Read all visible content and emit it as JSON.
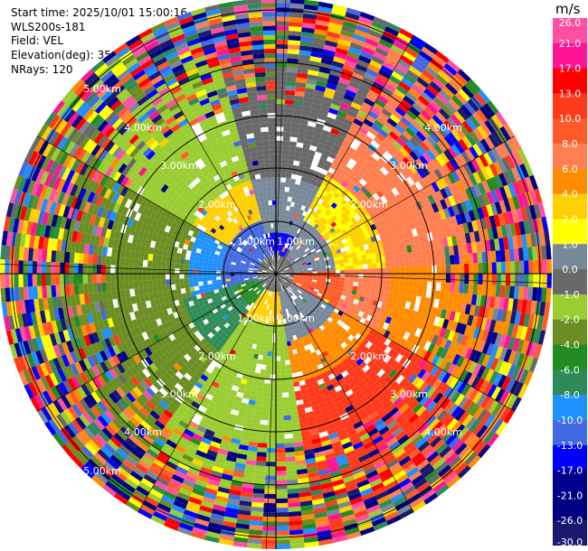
{
  "header": {
    "start_time": "Start time: 2025/10/01 15:00:16",
    "instrument": "WLS200s-181",
    "field": "Field: VEL",
    "elevation": "Elevation(deg): 35.00",
    "nrays": "NRays: 120"
  },
  "chart_data": {
    "type": "ppi",
    "field": "VEL",
    "units": "m/s",
    "nrays": 120,
    "range_rings_km": [
      1,
      2,
      3,
      4,
      5
    ],
    "ring_labels": [
      "1.00km",
      "2.00km",
      "3.00km",
      "4.00km",
      "5.00km"
    ],
    "colorbar": {
      "ticks": [
        "26.0",
        "21.0",
        "17.0",
        "13.0",
        "10.0",
        "8.0",
        "6.0",
        "4.0",
        "2.0",
        "1.0",
        "0.0",
        "-1.0",
        "-2.0",
        "-4.0",
        "-6.0",
        "-8.0",
        "-10.0",
        "-13.0",
        "-17.0",
        "-21.0",
        "-26.0",
        "-30.0"
      ],
      "bins": [
        {
          "color": "#ff4fa3"
        },
        {
          "color": "#ff1493"
        },
        {
          "color": "#ff0000"
        },
        {
          "color": "#ff3a1a"
        },
        {
          "color": "#ff5a28"
        },
        {
          "color": "#ff7f50"
        },
        {
          "color": "#ff8c00"
        },
        {
          "color": "#ffd000"
        },
        {
          "color": "#ffff00"
        },
        {
          "color": "#778899"
        },
        {
          "color": "#696969"
        },
        {
          "color": "#9acd32"
        },
        {
          "color": "#6b8e23"
        },
        {
          "color": "#228b22"
        },
        {
          "color": "#2e8b57"
        },
        {
          "color": "#1e90ff"
        },
        {
          "color": "#4169e1"
        },
        {
          "color": "#0000ff"
        },
        {
          "color": "#00008b"
        },
        {
          "color": "#000080"
        },
        {
          "color": "#191970"
        }
      ]
    }
  }
}
